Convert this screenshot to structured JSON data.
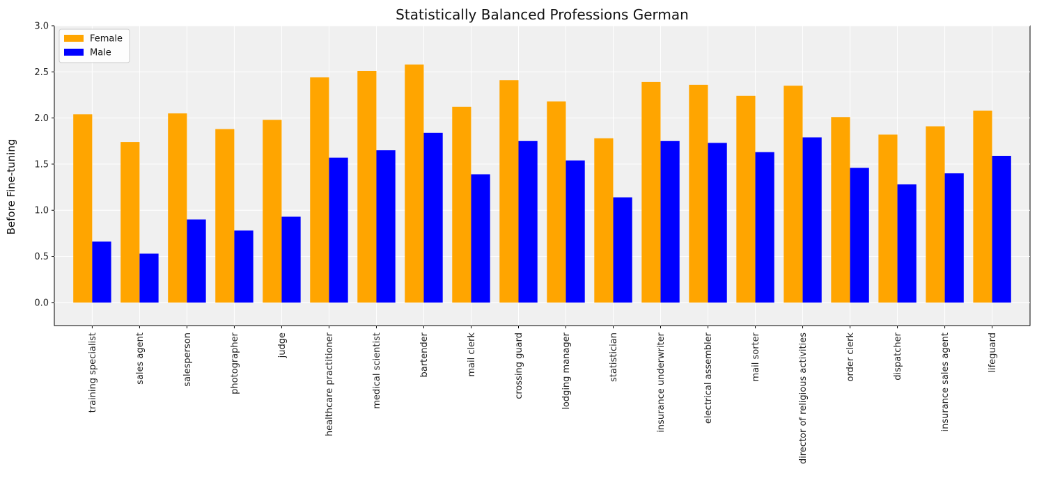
{
  "chart_data": {
    "type": "bar",
    "title": "Statistically Balanced Professions German",
    "xlabel": "",
    "ylabel": "Before Fine-tuning",
    "ylim": [
      -0.25,
      3.0
    ],
    "yticks": [
      0.0,
      0.5,
      1.0,
      1.5,
      2.0,
      2.5,
      3.0
    ],
    "grid": true,
    "legend_position": "top-left",
    "categories": [
      "training specialist",
      "sales agent",
      "salesperson",
      "photographer",
      "judge",
      "healthcare practitioner",
      "medical scientist",
      "bartender",
      "mail clerk",
      "crossing guard",
      "lodging manager",
      "statistician",
      "insurance underwriter",
      "electrical assembler",
      "mail sorter",
      "director of religious activities",
      "order clerk",
      "dispatcher",
      "insurance sales agent",
      "lifeguard"
    ],
    "series": [
      {
        "name": "Female",
        "color": "#ffa500",
        "values": [
          2.04,
          1.74,
          2.05,
          1.88,
          1.98,
          2.44,
          2.51,
          2.58,
          2.12,
          2.41,
          2.18,
          1.78,
          2.39,
          2.36,
          2.24,
          2.35,
          2.01,
          1.82,
          1.91,
          2.08
        ]
      },
      {
        "name": "Male",
        "color": "#0000ff",
        "values": [
          0.66,
          0.53,
          0.9,
          0.78,
          0.93,
          1.57,
          1.65,
          1.84,
          1.39,
          1.75,
          1.54,
          1.14,
          1.75,
          1.73,
          1.63,
          1.79,
          1.46,
          1.28,
          1.4,
          1.59
        ]
      }
    ],
    "colors": {
      "plot_background": "#f0f0f0",
      "grid": "#ffffff"
    }
  }
}
